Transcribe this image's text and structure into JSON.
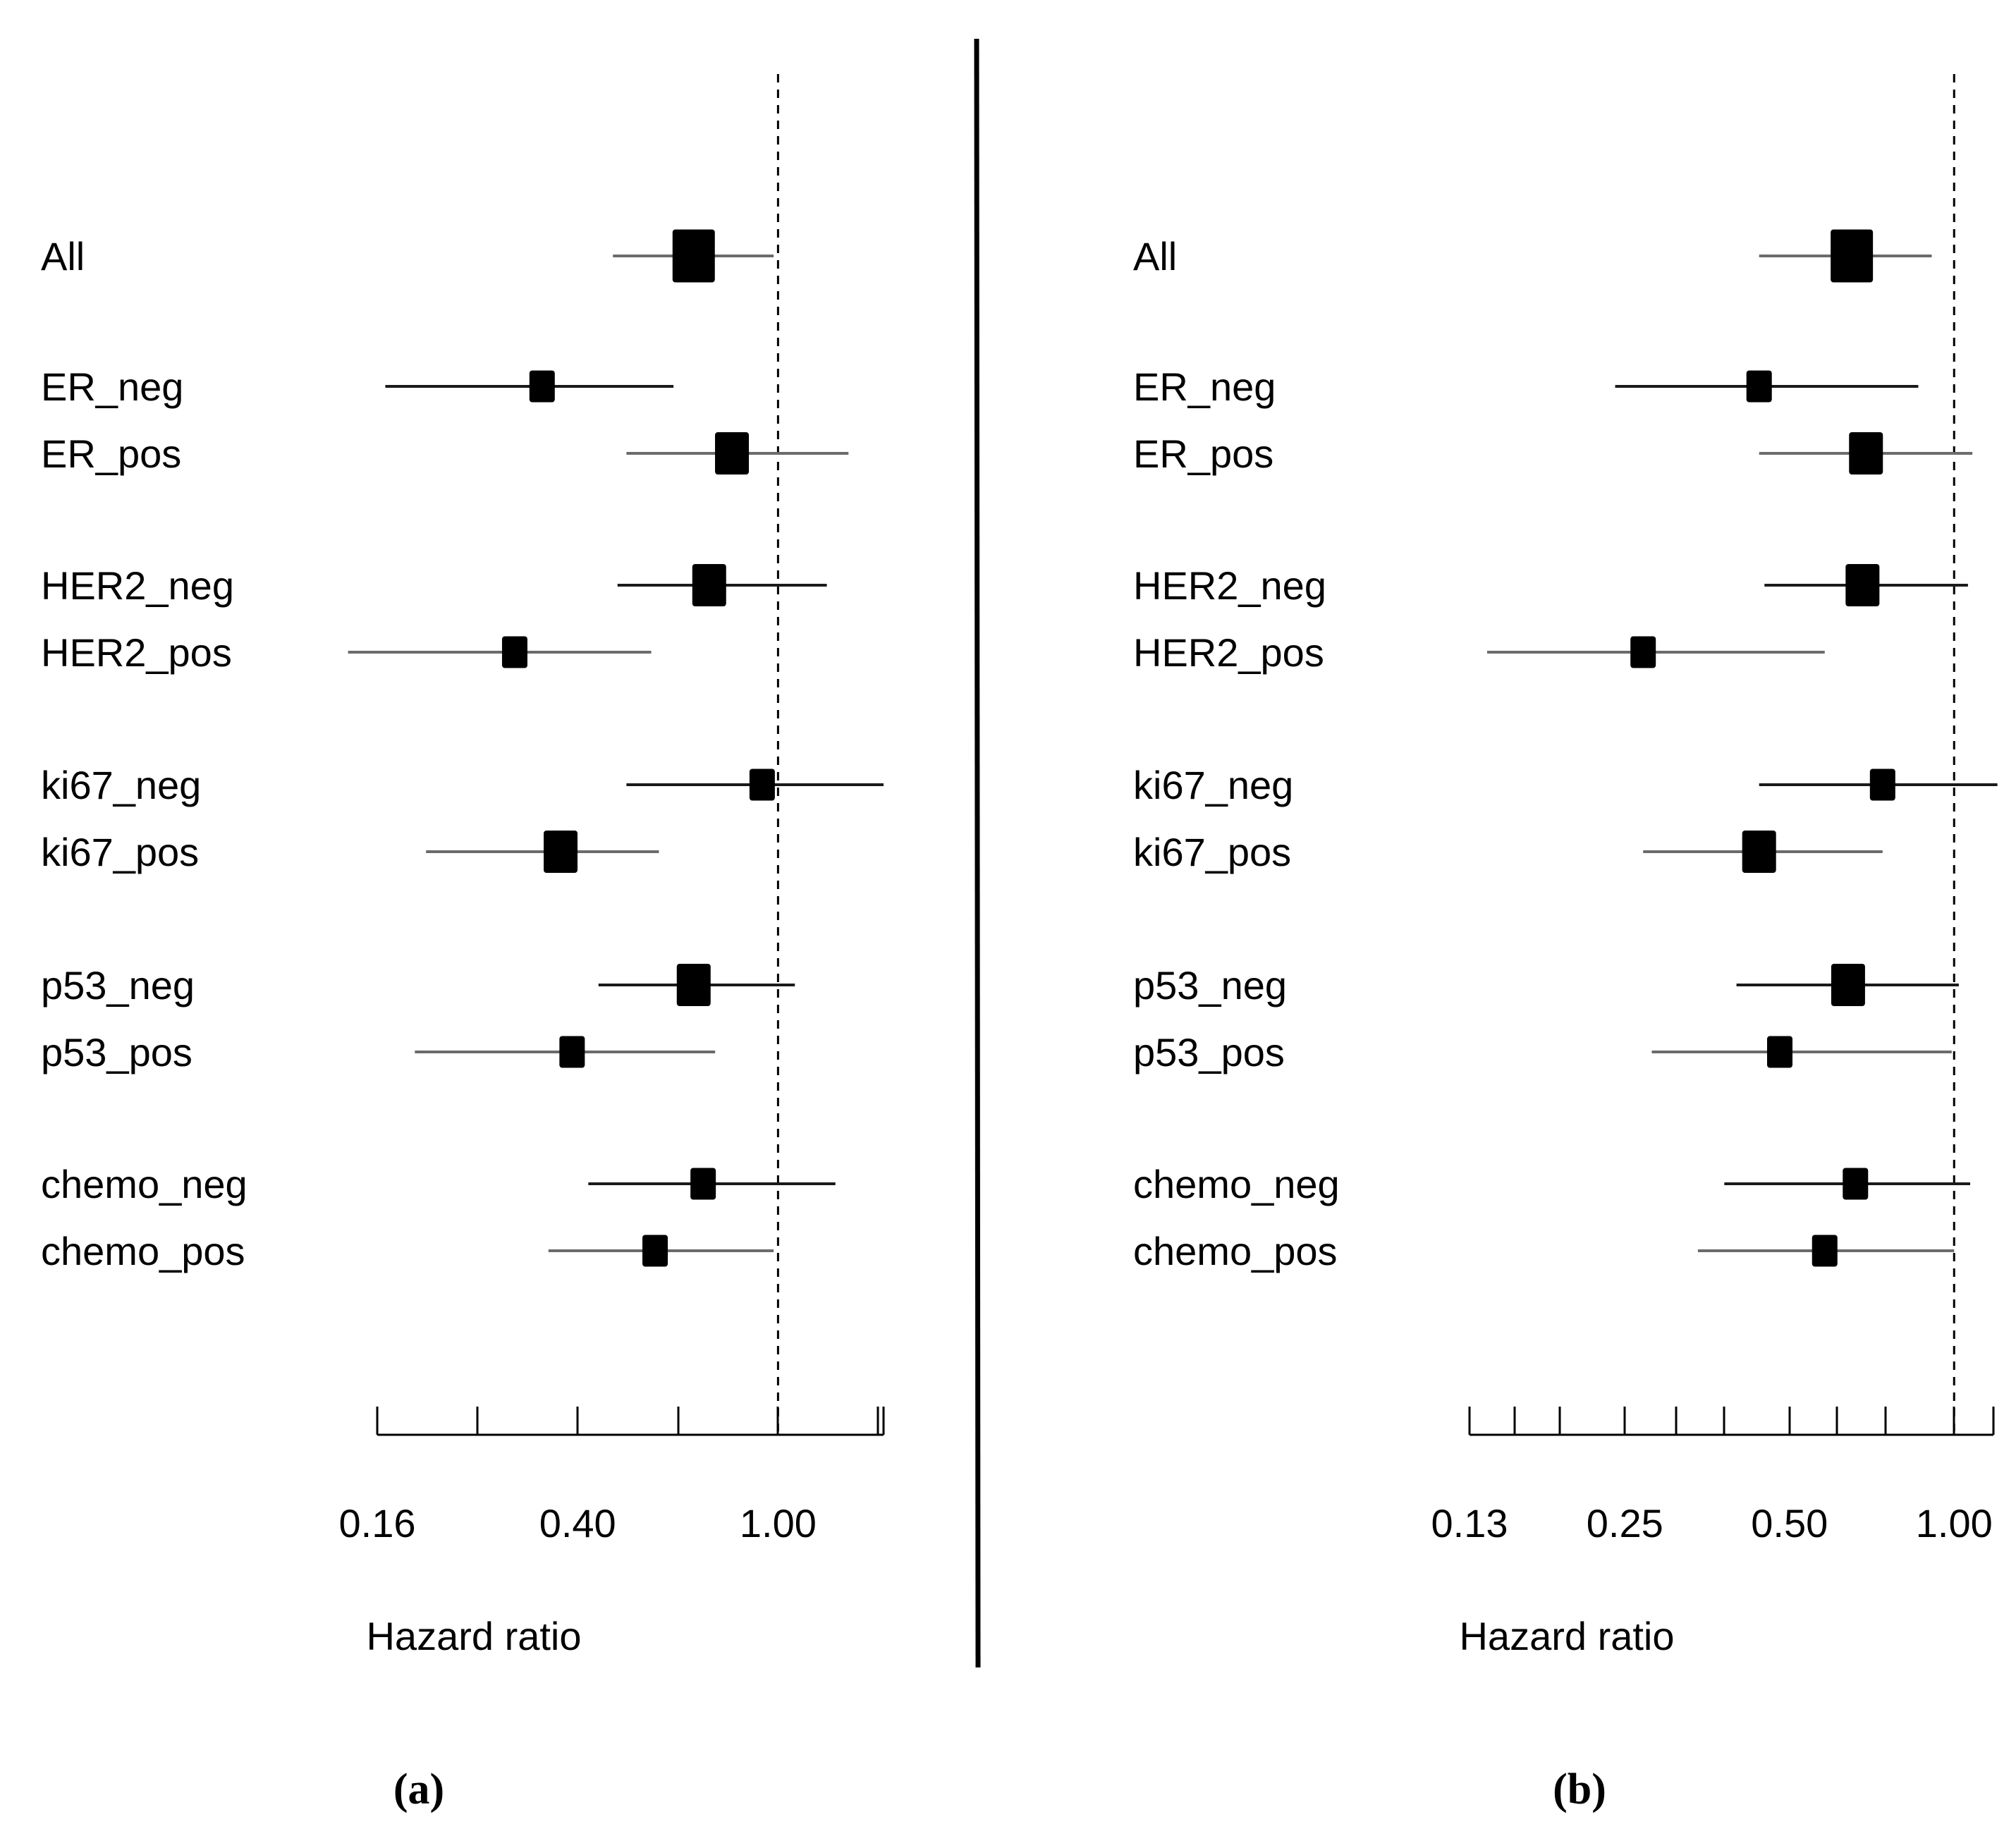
{
  "chart_data": [
    {
      "type": "forest",
      "panel_label": "(a)",
      "xlabel": "Hazard ratio",
      "xscale": "log",
      "xlim": [
        0.16,
        1.62
      ],
      "tick_labels": [
        "0.16",
        "0.40",
        "1.00"
      ],
      "tick_label_values": [
        0.16,
        0.4,
        1.0
      ],
      "minor_ticks": [
        0.253,
        0.4,
        0.633,
        1.0,
        1.58
      ],
      "reference_line": 1.0,
      "rows": [
        {
          "label": "All",
          "hr": 0.68,
          "lower": 0.47,
          "upper": 0.98,
          "size": "large"
        },
        {
          "label": "ER_neg",
          "hr": 0.34,
          "lower": 0.166,
          "upper": 0.62,
          "size": "small"
        },
        {
          "label": "ER_pos",
          "hr": 0.81,
          "lower": 0.5,
          "upper": 1.38,
          "size": "medium"
        },
        {
          "label": "HER2_neg",
          "hr": 0.73,
          "lower": 0.48,
          "upper": 1.25,
          "size": "medium"
        },
        {
          "label": "HER2_pos",
          "hr": 0.3,
          "lower": 0.14,
          "upper": 0.56,
          "size": "small"
        },
        {
          "label": "ki67_neg",
          "hr": 0.93,
          "lower": 0.5,
          "upper": 1.62,
          "size": "small"
        },
        {
          "label": "ki67_pos",
          "hr": 0.37,
          "lower": 0.2,
          "upper": 0.58,
          "size": "medium"
        },
        {
          "label": "p53_neg",
          "hr": 0.68,
          "lower": 0.44,
          "upper": 1.08,
          "size": "medium"
        },
        {
          "label": "p53_pos",
          "hr": 0.39,
          "lower": 0.19,
          "upper": 0.75,
          "size": "small"
        },
        {
          "label": "chemo_neg",
          "hr": 0.71,
          "lower": 0.42,
          "upper": 1.3,
          "size": "small"
        },
        {
          "label": "chemo_pos",
          "hr": 0.57,
          "lower": 0.35,
          "upper": 0.98,
          "size": "small"
        }
      ]
    },
    {
      "type": "forest",
      "panel_label": "(b)",
      "xlabel": "Hazard ratio",
      "xscale": "log",
      "xlim": [
        0.13,
        1.18
      ],
      "tick_labels": [
        "0.13",
        "0.25",
        "0.50",
        "1.00"
      ],
      "tick_label_values": [
        0.13,
        0.25,
        0.5,
        1.0
      ],
      "minor_ticks": [
        0.13,
        0.157,
        0.19,
        0.25,
        0.31,
        0.38,
        0.5,
        0.61,
        0.75,
        1.0,
        1.18
      ],
      "reference_line": 1.0,
      "rows": [
        {
          "label": "All",
          "hr": 0.65,
          "lower": 0.44,
          "upper": 0.91,
          "size": "large"
        },
        {
          "label": "ER_neg",
          "hr": 0.44,
          "lower": 0.24,
          "upper": 0.86,
          "size": "small"
        },
        {
          "label": "ER_pos",
          "hr": 0.69,
          "lower": 0.44,
          "upper": 1.08,
          "size": "medium"
        },
        {
          "label": "HER2_neg",
          "hr": 0.68,
          "lower": 0.45,
          "upper": 1.06,
          "size": "medium"
        },
        {
          "label": "HER2_pos",
          "hr": 0.27,
          "lower": 0.14,
          "upper": 0.58,
          "size": "small"
        },
        {
          "label": "ki67_neg",
          "hr": 0.74,
          "lower": 0.44,
          "upper": 1.2,
          "size": "small"
        },
        {
          "label": "ki67_pos",
          "hr": 0.44,
          "lower": 0.27,
          "upper": 0.74,
          "size": "medium"
        },
        {
          "label": "p53_neg",
          "hr": 0.64,
          "lower": 0.4,
          "upper": 1.02,
          "size": "medium"
        },
        {
          "label": "p53_pos",
          "hr": 0.48,
          "lower": 0.28,
          "upper": 0.99,
          "size": "small"
        },
        {
          "label": "chemo_neg",
          "hr": 0.66,
          "lower": 0.38,
          "upper": 1.07,
          "size": "small"
        },
        {
          "label": "chemo_pos",
          "hr": 0.58,
          "lower": 0.34,
          "upper": 1.0,
          "size": "small"
        }
      ]
    }
  ]
}
